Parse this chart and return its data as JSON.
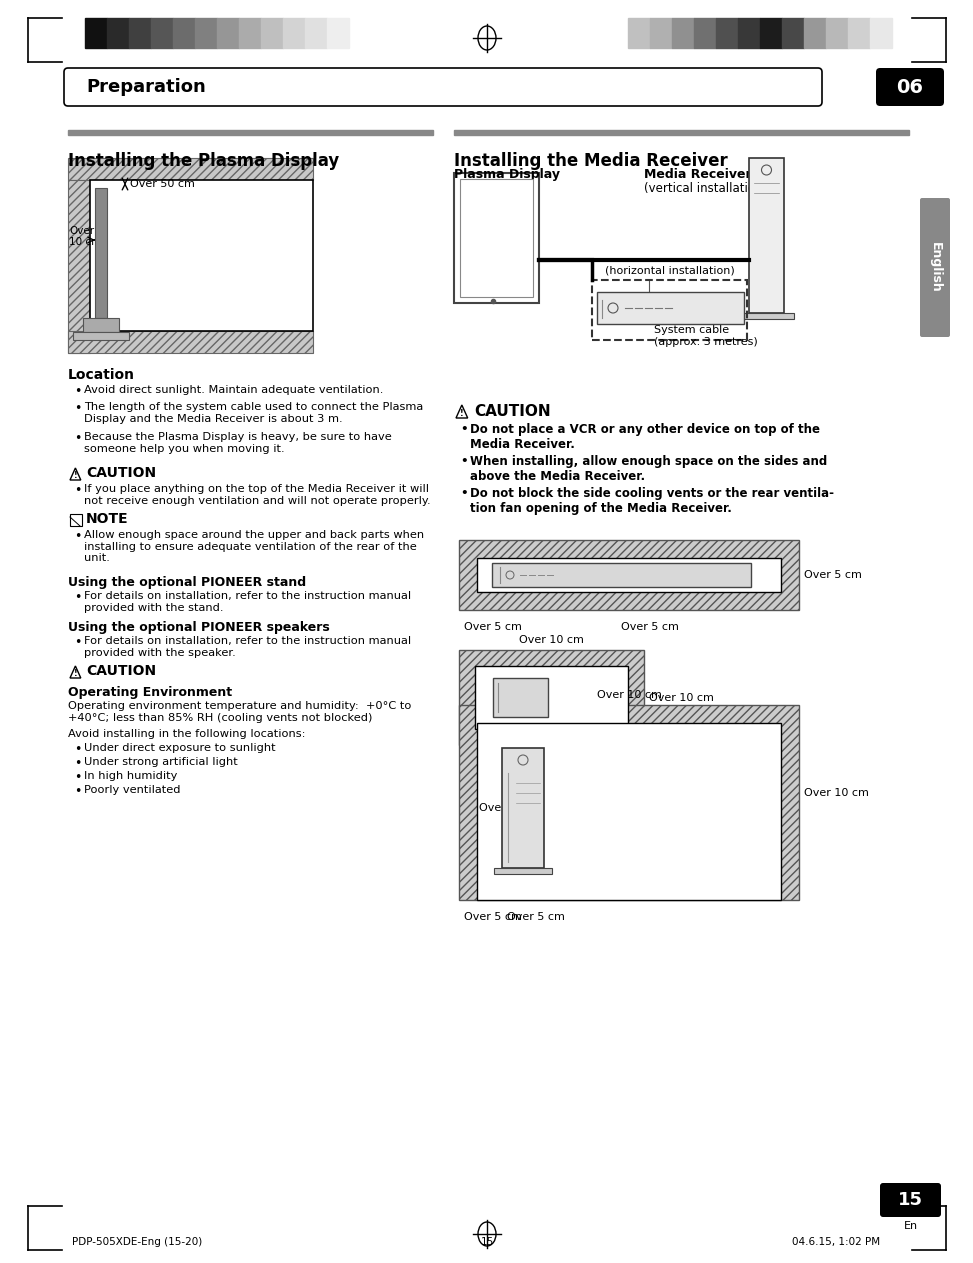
{
  "page_title": "Preparation",
  "chapter_num": "06",
  "page_num": "15",
  "page_num_sub": "En",
  "footer_left": "PDP-505XDE-Eng (15-20)",
  "footer_center": "15",
  "footer_right": "04.6.15, 1:02 PM",
  "bg_color": "#ffffff",
  "header_gray_colors_left": [
    "#111111",
    "#2a2a2a",
    "#404040",
    "#565656",
    "#6c6c6c",
    "#808080",
    "#969696",
    "#ababab",
    "#bfbfbf",
    "#d3d3d3",
    "#e0e0e0",
    "#eeeeee"
  ],
  "header_gray_colors_right": [
    "#c0c0c0",
    "#b0b0b0",
    "#909090",
    "#707070",
    "#505050",
    "#383838",
    "#1c1c1c",
    "#484848",
    "#989898",
    "#b8b8b8",
    "#d0d0d0",
    "#e8e8e8"
  ],
  "section_title_left": "Installing the Plasma Display",
  "section_title_right": "Installing the Media Receiver",
  "location_title": "Location",
  "location_bullets": [
    "Avoid direct sunlight. Maintain adequate ventilation.",
    "The length of the system cable used to connect the Plasma\nDisplay and the Media Receiver is about 3 m.",
    "Because the Plasma Display is heavy, be sure to have\nsomeone help you when moving it."
  ],
  "caution_title_left": "CAUTION",
  "caution_text_left": "If you place anything on the top of the Media Receiver it will\nnot receive enough ventilation and will not operate properly.",
  "note_title": "NOTE",
  "note_text": "Allow enough space around the upper and back parts when\ninstalling to ensure adequate ventilation of the rear of the\nunit.",
  "pioneer_stand_title": "Using the optional PIONEER stand",
  "pioneer_stand_text": "For details on installation, refer to the instruction manual\nprovided with the stand.",
  "pioneer_speaker_title": "Using the optional PIONEER speakers",
  "pioneer_speaker_text": "For details on installation, refer to the instruction manual\nprovided with the speaker.",
  "caution2_title": "CAUTION",
  "op_env_title": "Operating Environment",
  "op_env_text1": "Operating environment temperature and humidity:  +0°C to\n+40°C; less than 85% RH (cooling vents not blocked)",
  "op_env_text2": "Avoid installing in the following locations:",
  "op_env_bullets": [
    "Under direct exposure to sunlight",
    "Under strong artificial light",
    "In high humidity",
    "Poorly ventilated"
  ],
  "right_caution_title": "CAUTION",
  "right_caution_b1_normal": "Do not place a ",
  "right_caution_b1_bold": "VCR",
  "right_caution_b1_end": " or any other device on top of the",
  "right_caution_b1_line2": "Media Receiver.",
  "right_caution_b2_line1": "When installing, allow enough space on the sides and",
  "right_caution_b2_line2": "above the Media Receiver.",
  "right_caution_b3_line1": "Do not block the side cooling vents or the rear ventila-",
  "right_caution_b3_line2": "tion fan opening of the Media Receiver.",
  "plasma_display_label": "Plasma Display",
  "media_receiver_bold": "Media Receiver",
  "media_receiver_normal": "(vertical installation)",
  "horiz_install_label": "(horizontal installation)",
  "system_cable_label": "System cable\n(approx. 3 metres)",
  "over50": "Over 50 cm",
  "over10_line1": "Over",
  "over10_line2": "10 cm",
  "over5_top_right": "Over 5 cm",
  "over5_bottom_left1": "Over 5 cm",
  "over5_bottom_right1": "Over 5 cm",
  "over10_cm_top": "Over 10 cm",
  "over10_cm_right": "Over 10 cm",
  "over5_left2": "Over 5 cm",
  "over5_bottom2a": "Over 5 cm",
  "over5_bottom2b": "Over 5 cm",
  "english_label": "English"
}
